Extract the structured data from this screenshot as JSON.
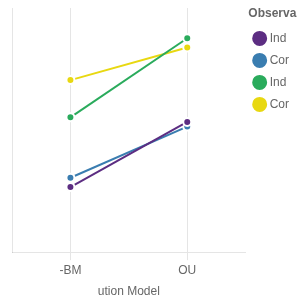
{
  "chart_data": {
    "type": "line",
    "categories": [
      "-BM",
      "OU"
    ],
    "series": [
      {
        "name": "Ind",
        "color": "#5c2d82",
        "values": [
          0.28,
          0.56
        ]
      },
      {
        "name": "Cor",
        "color": "#3a7db0",
        "values": [
          0.32,
          0.54
        ]
      },
      {
        "name": "Ind",
        "color": "#2aab5c",
        "values": [
          0.58,
          0.92
        ]
      },
      {
        "name": "Cor",
        "color": "#e8d811",
        "values": [
          0.74,
          0.88
        ]
      }
    ],
    "legend_title": "Observa",
    "legend": "right",
    "xlabel": "ution Model",
    "ylim": [
      0.0,
      1.05
    ],
    "tick_labels": "x",
    "grid": true,
    "marker": "circle",
    "line_style": "solid"
  }
}
